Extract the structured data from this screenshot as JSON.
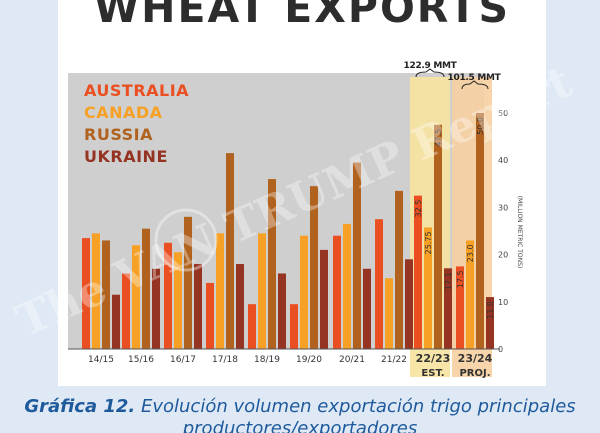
{
  "chart_data": {
    "type": "bar",
    "title": "WHEAT EXPORTS",
    "categories": [
      "14/15",
      "15/16",
      "16/17",
      "17/18",
      "18/19",
      "19/20",
      "20/21",
      "21/22",
      "22/23",
      "23/24"
    ],
    "category_sublabels": [
      "",
      "",
      "",
      "",
      "",
      "",
      "",
      "",
      "EST.",
      "PROJ."
    ],
    "series": [
      {
        "name": "AUSTRALIA",
        "color": "#ea4f22",
        "values": [
          23.5,
          16,
          22.5,
          14,
          9.5,
          9.5,
          24,
          27.5,
          32.5,
          17.5
        ]
      },
      {
        "name": "CANADA",
        "color": "#f6a126",
        "values": [
          24.5,
          22,
          20.5,
          24.5,
          24.5,
          24,
          26.5,
          15,
          25.75,
          23.0
        ]
      },
      {
        "name": "RUSSIA",
        "color": "#b0621e",
        "values": [
          23,
          25.5,
          28,
          41.5,
          36,
          34.5,
          39.5,
          33.5,
          47.5,
          50.0
        ]
      },
      {
        "name": "UKRAINE",
        "color": "#953422",
        "values": [
          11.5,
          17,
          18,
          18,
          16,
          21,
          17,
          19,
          17.1,
          11.0
        ]
      }
    ],
    "data_labels": {
      "22/23": [
        "32.5",
        "25.75",
        "47.5",
        "17.1"
      ],
      "23/24": [
        "17.5",
        "23.0",
        "50.0",
        "11.0"
      ]
    },
    "totals": {
      "22/23": "122.9 MMT",
      "23/24": "101.5 MMT"
    },
    "ylabel": "(MILLION METRIC TONS)",
    "ylim": [
      0,
      50
    ],
    "yticks": [
      0,
      10,
      20,
      30,
      40,
      50
    ],
    "ytick_labels": [
      "0",
      "10",
      "20",
      "30",
      "40",
      "50"
    ],
    "legend_placement": "top-left",
    "grid": false,
    "watermark": "The VAN TRUMP Report",
    "highlight_colors": {
      "22/23": "#f7e3a0",
      "23/24": "#f6cfa0"
    }
  },
  "caption": {
    "lead": "Gráfica 12.",
    "text": " Evolución volumen exportación trigo principales productores/exportadores"
  }
}
